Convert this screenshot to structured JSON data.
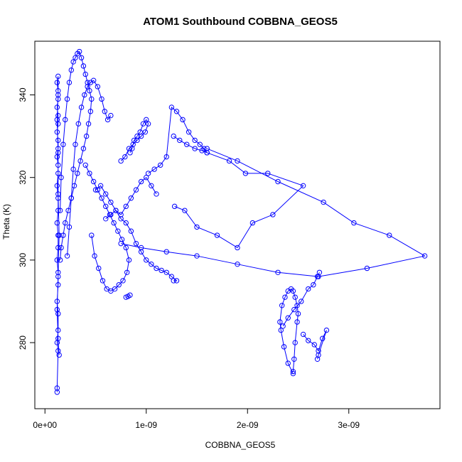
{
  "chart_data": {
    "type": "scatter",
    "title": "ATOM1 Southbound COBBNA_GEOS5",
    "xlabel": "COBBNA_GEOS5",
    "ylabel": "Theta (K)",
    "xlim": [
      -1e-10,
      3.9e-09
    ],
    "ylim": [
      264,
      353
    ],
    "x_ticks": [
      {
        "value": 0,
        "label": "0e+00"
      },
      {
        "value": 1e-09,
        "label": "1e-09"
      },
      {
        "value": 2e-09,
        "label": "2e-09"
      },
      {
        "value": 3e-09,
        "label": "3e-09"
      }
    ],
    "y_ticks": [
      {
        "value": 280,
        "label": "280"
      },
      {
        "value": 300,
        "label": "300"
      },
      {
        "value": 320,
        "label": "320"
      },
      {
        "value": 340,
        "label": "340"
      }
    ],
    "grid": false,
    "legend": "none",
    "color": "#0000ff",
    "marker": "open-circle",
    "connected": true,
    "series": [
      {
        "x": [
          1.2e-10,
          1.2e-10,
          1.3e-10,
          1.2e-10,
          1.3e-10,
          1.3e-10,
          1.2e-10,
          1.3e-10,
          1.3e-10,
          1.2e-10,
          1.3e-10,
          1.3e-10,
          1.2e-10,
          1.3e-10,
          1.3e-10,
          1.2e-10,
          1.3e-10,
          1.3e-10,
          1.2e-10,
          1.3e-10,
          1.3e-10,
          1.2e-10,
          1.3e-10,
          1.3e-10,
          1.2e-10,
          1.3e-10,
          1.3e-10,
          1.2e-10,
          1.3e-10,
          1.3e-10,
          1.2e-10,
          1.3e-10,
          1.3e-10,
          1.4e-10,
          1.3e-10,
          1.2e-10,
          1.3e-10,
          1.4e-10
        ],
        "y": [
          268,
          269,
          278,
          280,
          283,
          287,
          290,
          294,
          297,
          300,
          303,
          306,
          309,
          312,
          315,
          318,
          321,
          323,
          325,
          327,
          329,
          331,
          333,
          335,
          337,
          339,
          341,
          343,
          344.5,
          340,
          334,
          326,
          316,
          306,
          296,
          288,
          281,
          277
        ]
      },
      {
        "x": [
          1.5e-10,
          1.6e-10,
          1.8e-10,
          2e-10,
          2.2e-10,
          2.4e-10,
          2.6e-10,
          2.8e-10,
          3e-10,
          3.2e-10,
          3.4e-10,
          3.6e-10,
          3.8e-10,
          4e-10,
          4.2e-10,
          4.4e-10,
          4.6e-10,
          4.5e-10,
          4.3e-10,
          4.1e-10,
          3.8e-10,
          3.5e-10,
          3.2e-10,
          2.9e-10,
          2.6e-10,
          2.3e-10,
          2e-10,
          1.8e-10,
          1.6e-10,
          1.5e-10
        ],
        "y": [
          312,
          320,
          328,
          334,
          339,
          343,
          346,
          348,
          349,
          350,
          350.5,
          349,
          347,
          345,
          343,
          341,
          339,
          336,
          333,
          330,
          327,
          324,
          321,
          318,
          315,
          312,
          309,
          306,
          303,
          300
        ]
      },
      {
        "x": [
          2.2e-10,
          2.4e-10,
          2.6e-10,
          2.8e-10,
          3e-10,
          3.3e-10,
          3.6e-10,
          3.9e-10,
          4.2e-10,
          4.5e-10,
          4.8e-10,
          5.2e-10,
          5.6e-10,
          5.9e-10,
          6.2e-10,
          6.5e-10
        ],
        "y": [
          301,
          308,
          315,
          322,
          328,
          333,
          337,
          340,
          342,
          343,
          343.5,
          342,
          339,
          336,
          334,
          335
        ]
      },
      {
        "x": [
          4e-10,
          4.4e-10,
          4.8e-10,
          5.2e-10,
          5.6e-10,
          6e-10,
          6.4e-10,
          6.8e-10,
          7.2e-10,
          7.6e-10,
          8e-10,
          8.3e-10,
          8.1e-10,
          7.7e-10,
          7.3e-10,
          6.9e-10,
          6.5e-10,
          6.1e-10,
          5.7e-10,
          5.3e-10,
          4.9e-10,
          4.6e-10
        ],
        "y": [
          323,
          321,
          319,
          317,
          315,
          313,
          311,
          309,
          307,
          305,
          303,
          300,
          297,
          295,
          294,
          293,
          292.5,
          293,
          295,
          298,
          301,
          306
        ]
      },
      {
        "x": [
          8e-10,
          8.2e-10,
          8.4e-10
        ],
        "y": [
          291,
          291.2,
          291.5
        ]
      },
      {
        "x": [
          7.5e-10,
          7.9e-10,
          8.3e-10,
          8.7e-10,
          9.1e-10,
          9.5e-10,
          9.9e-10,
          1.02e-09,
          1e-09,
          9.7e-10,
          9.4e-10,
          9.1e-10,
          8.8e-10,
          8.6e-10,
          8.4e-10
        ],
        "y": [
          324,
          325,
          327,
          328,
          329,
          330,
          331,
          333,
          334,
          333,
          331,
          330,
          329,
          327,
          326
        ]
      },
      {
        "x": [
          1.02e-09,
          1.08e-09,
          1.14e-09,
          1.2e-09,
          1.25e-09,
          1.3e-09,
          1.36e-09,
          1.42e-09,
          1.48e-09,
          1.53e-09,
          1.57e-09,
          1.6e-09,
          1.55e-09,
          1.48e-09,
          1.4e-09,
          1.33e-09,
          1.27e-09
        ],
        "y": [
          321,
          322,
          323,
          325,
          337,
          336,
          334,
          331,
          329,
          328,
          327,
          326,
          326.5,
          327,
          328,
          329,
          330
        ]
      },
      {
        "x": [
          1.6e-09,
          1.82e-09,
          1.98e-09,
          2.2e-09,
          2.55e-09,
          2.25e-09,
          2.05e-09,
          1.9e-09,
          1.7e-09,
          1.5e-09,
          1.38e-09,
          1.28e-09
        ],
        "y": [
          326,
          324,
          321,
          321,
          318,
          311,
          309,
          303,
          306,
          308,
          312,
          313
        ]
      },
      {
        "x": [
          1.6e-09,
          1.9e-09,
          2.3e-09,
          2.75e-09,
          3.05e-09,
          3.4e-09,
          3.75e-09,
          3.18e-09,
          2.7e-09,
          2.3e-09,
          1.9e-09,
          1.5e-09,
          1.2e-09,
          9.5e-10,
          7.5e-10
        ],
        "y": [
          327,
          324,
          319,
          314,
          309,
          306,
          301,
          298,
          296,
          297,
          299,
          301,
          302,
          303,
          304
        ]
      },
      {
        "x": [
          2.45e-09,
          2.4e-09,
          2.36e-09,
          2.33e-09,
          2.32e-09,
          2.34e-09,
          2.37e-09,
          2.4e-09,
          2.43e-09,
          2.45e-09,
          2.47e-09,
          2.49e-09,
          2.5e-09,
          2.49e-09,
          2.47e-09,
          2.46e-09,
          2.45e-09
        ],
        "y": [
          272.5,
          275,
          279,
          283,
          285,
          289,
          291,
          292.5,
          293,
          292.5,
          291,
          289,
          287,
          285,
          280,
          276,
          273
        ]
      },
      {
        "x": [
          2.35e-09,
          2.4e-09,
          2.46e-09,
          2.53e-09,
          2.6e-09,
          2.65e-09,
          2.69e-09,
          2.71e-09
        ],
        "y": [
          284,
          286,
          288,
          290,
          293,
          294,
          296,
          297
        ]
      },
      {
        "x": [
          2.55e-09,
          2.6e-09,
          2.66e-09,
          2.7e-09,
          2.74e-09,
          2.78e-09,
          2.7e-09,
          2.69e-09
        ],
        "y": [
          282,
          280.5,
          279.5,
          278,
          281,
          283,
          277,
          276
        ]
      },
      {
        "x": [
          6e-10,
          6.5e-10,
          7e-10,
          7.5e-10,
          8e-10,
          8.5e-10,
          9e-10,
          9.5e-10,
          1e-09,
          1.05e-09,
          1.1e-09,
          1.15e-09,
          1.2e-09,
          1.25e-09,
          1.3e-09,
          1.27e-09
        ],
        "y": [
          310,
          311,
          312,
          310,
          309,
          307,
          304,
          302,
          300,
          299,
          298,
          297.5,
          297,
          296,
          295,
          295
        ]
      },
      {
        "x": [
          5e-10,
          5.5e-10,
          6e-10,
          6.5e-10,
          7e-10,
          7.5e-10,
          8e-10,
          8.5e-10,
          9e-10,
          9.5e-10,
          1e-09,
          1.05e-09,
          1.1e-09
        ],
        "y": [
          317,
          318,
          316,
          314,
          312,
          311,
          313,
          315,
          317,
          319,
          320,
          318,
          316
        ]
      }
    ]
  }
}
